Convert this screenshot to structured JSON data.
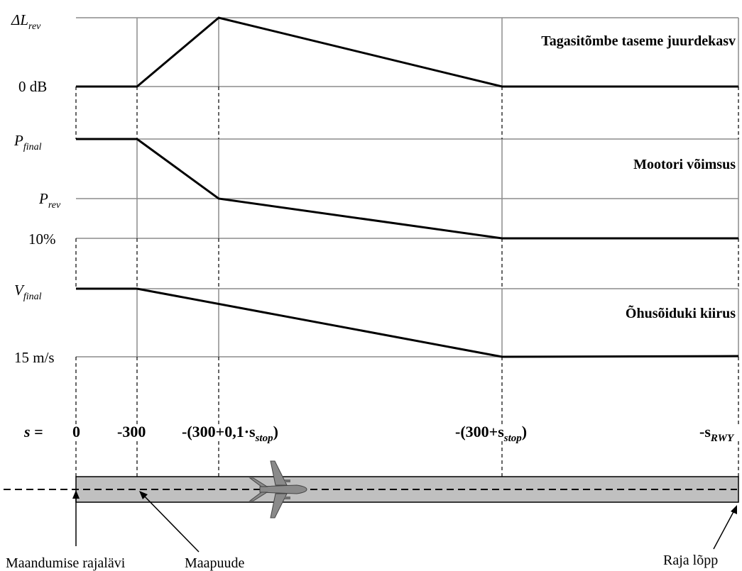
{
  "panels": {
    "reverse_level": {
      "title": "Tagasitõmbe taseme juurdekasv",
      "y_top_label_main": "ΔL",
      "y_top_label_sub": "rev",
      "y_bottom_label": "0 dB"
    },
    "engine_power": {
      "title": "Mootori võimsus",
      "y_top_label_main": "P",
      "y_top_label_sub": "final",
      "y_mid_label_main": "P",
      "y_mid_label_sub": "rev",
      "y_bottom_label": "10%"
    },
    "aircraft_speed": {
      "title": "Õhusõiduki kiirus",
      "y_top_label_main": "V",
      "y_top_label_sub": "final",
      "y_bottom_label": "15 m/s"
    }
  },
  "distance_axis": {
    "prefix": "s =",
    "ticks": [
      {
        "main": "0",
        "sub": "",
        "after": ""
      },
      {
        "main": "-300",
        "sub": "",
        "after": ""
      },
      {
        "main": "-(300+0,1·s",
        "sub": "stop",
        "after": ")"
      },
      {
        "main": "-(300+s",
        "sub": "stop",
        "after": ")"
      },
      {
        "main": "-s",
        "sub": "RWY",
        "after": ""
      }
    ]
  },
  "runway_labels": {
    "threshold": "Maandumise rajalävi",
    "touchdown": "Maapuude",
    "runway_end": "Raja lõpp"
  },
  "colors": {
    "runway_fill": "#c0c0c0",
    "grid_line": "#8c8c8c",
    "aircraft_fill": "#8a8a8a"
  }
}
